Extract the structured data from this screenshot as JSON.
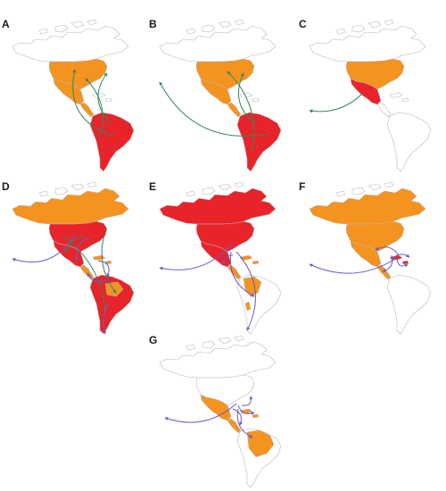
{
  "figure": {
    "colors": {
      "high": "#e8232a",
      "medium": "#f5931f",
      "none": "#ffffff",
      "outline": "#b8b8b8",
      "arrow_green": "#2e8b57",
      "arrow_purple": "#6a5acd"
    },
    "panels": [
      {
        "letter": "A",
        "regions": {
          "north": "none",
          "usa": "medium",
          "mexico": "medium",
          "central": "medium",
          "caribbean": "none",
          "south": "high"
        },
        "arrow_color": "green"
      },
      {
        "letter": "B",
        "regions": {
          "north": "none",
          "usa": "medium",
          "mexico": "medium",
          "central": "medium",
          "caribbean": "none",
          "south": "high"
        },
        "arrow_color": "green"
      },
      {
        "letter": "C",
        "regions": {
          "north": "none",
          "usa": "medium",
          "mexico": "high",
          "central": "none",
          "caribbean": "none",
          "south": "none"
        },
        "arrow_color": "green"
      },
      {
        "letter": "D",
        "regions": {
          "north": "medium",
          "usa": "high",
          "mexico": "high",
          "central": "medium",
          "caribbean": "medium",
          "south": "high"
        },
        "arrow_color": "mixed"
      },
      {
        "letter": "E",
        "regions": {
          "north": "high",
          "usa": "high",
          "mexico": "high",
          "central": "medium",
          "caribbean": "medium",
          "south": "partial"
        },
        "arrow_color": "purple"
      },
      {
        "letter": "F",
        "regions": {
          "north": "medium",
          "usa": "medium",
          "mexico": "medium",
          "central": "medium",
          "caribbean": "high",
          "south": "none"
        },
        "arrow_color": "purple"
      },
      {
        "letter": "G",
        "regions": {
          "north": "none",
          "usa": "none",
          "mexico": "medium",
          "central": "medium",
          "caribbean": "medium",
          "south": "partial"
        },
        "arrow_color": "purple"
      }
    ]
  }
}
